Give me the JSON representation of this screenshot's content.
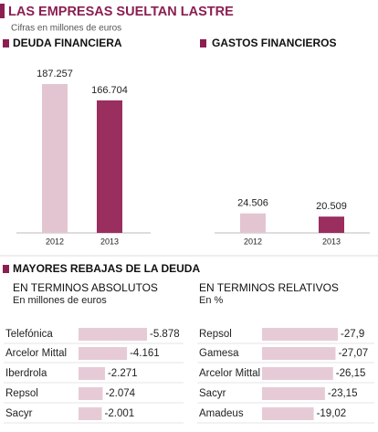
{
  "title": "LAS EMPRESAS SUELTAN LASTRE",
  "subtitle": "Cifras en millones de euros",
  "section_title": "MAYORES REBAJAS DE LA DEUDA",
  "chart_data": [
    {
      "type": "bar",
      "orientation": "vertical",
      "title": "DEUDA FINANCIERA",
      "categories": [
        "2012",
        "2013"
      ],
      "values": [
        187257,
        166704
      ],
      "value_labels": [
        "187.257",
        "166.704"
      ],
      "colors": [
        "#e3c5d1",
        "#9a2e5f"
      ]
    },
    {
      "type": "bar",
      "orientation": "vertical",
      "title": "GASTOS FINANCIEROS",
      "categories": [
        "2012",
        "2013"
      ],
      "values": [
        24506,
        20509
      ],
      "value_labels": [
        "24.506",
        "20.509"
      ],
      "colors": [
        "#e3c5d1",
        "#9a2e5f"
      ]
    },
    {
      "type": "bar",
      "orientation": "horizontal",
      "title": "EN TERMINOS ABSOLUTOS",
      "subtitle": "En millones de euros",
      "categories": [
        "Telefónica",
        "Arcelor Mittal",
        "Iberdrola",
        "Repsol",
        "Sacyr"
      ],
      "values": [
        -5878,
        -4161,
        -2271,
        -2074,
        -2001
      ],
      "value_labels": [
        "-5.878",
        "-4.161",
        "-2.271",
        "-2.074",
        "-2.001"
      ],
      "color": "#e6cbd6"
    },
    {
      "type": "bar",
      "orientation": "horizontal",
      "title": "EN TERMINOS RELATIVOS",
      "subtitle": "En %",
      "categories": [
        "Repsol",
        "Gamesa",
        "Arcelor Mittal",
        "Sacyr",
        "Amadeus"
      ],
      "values": [
        -27.9,
        -27.07,
        -26.15,
        -23.15,
        -19.02
      ],
      "value_labels": [
        "-27,9",
        "-27,07",
        "-26,15",
        "-23,15",
        "-19,02"
      ],
      "color": "#e6cbd6"
    }
  ]
}
